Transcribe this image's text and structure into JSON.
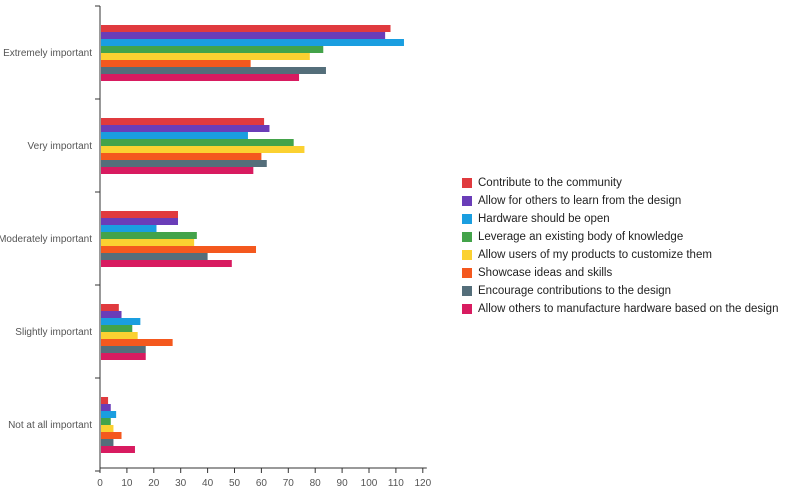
{
  "chart_data": {
    "type": "bar",
    "orientation": "horizontal",
    "categories": [
      "Extremely important",
      "Very important",
      "Moderately important",
      "Slightly important",
      "Not at all important"
    ],
    "series": [
      {
        "name": "Contribute to the community",
        "color": "#e03a3e",
        "values": [
          108,
          61,
          29,
          7,
          3
        ]
      },
      {
        "name": "Allow for others to learn from the design",
        "color": "#6a3db8",
        "values": [
          106,
          63,
          29,
          8,
          4
        ]
      },
      {
        "name": "Hardware should be open",
        "color": "#1a9ee0",
        "values": [
          113,
          55,
          21,
          15,
          6
        ]
      },
      {
        "name": "Leverage an existing body of knowledge",
        "color": "#43a34a",
        "values": [
          83,
          72,
          36,
          12,
          4
        ]
      },
      {
        "name": "Allow users of my products to customize them",
        "color": "#fbd131",
        "values": [
          78,
          76,
          35,
          14,
          5
        ]
      },
      {
        "name": "Showcase ideas and skills",
        "color": "#f4581e",
        "values": [
          56,
          60,
          58,
          27,
          8
        ]
      },
      {
        "name": "Encourage contributions to the design",
        "color": "#546e7a",
        "values": [
          84,
          62,
          40,
          17,
          5
        ]
      },
      {
        "name": "Allow others to manufacture hardware based on the design",
        "color": "#d81b60",
        "values": [
          74,
          57,
          49,
          17,
          13
        ]
      }
    ],
    "xlim": [
      0,
      120
    ],
    "xticks": [
      0,
      10,
      20,
      30,
      40,
      50,
      60,
      70,
      80,
      90,
      100,
      110,
      120
    ],
    "grid": false,
    "legend_position": "right"
  }
}
